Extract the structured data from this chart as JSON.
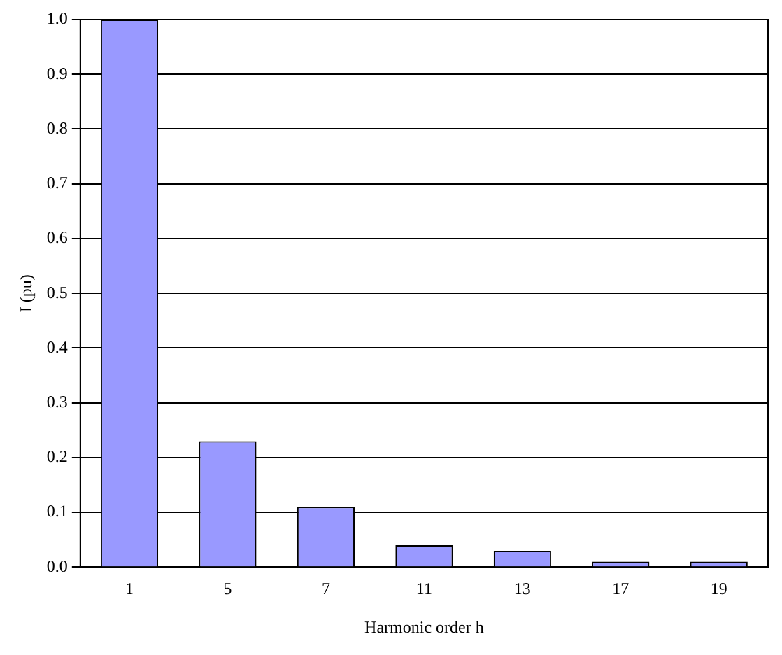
{
  "chart_data": {
    "type": "bar",
    "xlabel": "Harmonic order h",
    "ylabel": "I (pu)",
    "categories": [
      "1",
      "5",
      "7",
      "11",
      "13",
      "17",
      "19"
    ],
    "series": [
      {
        "color": "#9999ff",
        "values": [
          1.0,
          0.23,
          0.11,
          0.04,
          0.03,
          0.01,
          0.01
        ]
      }
    ],
    "ylim": [
      0,
      1.0
    ],
    "yticks": [
      {
        "value": 0,
        "label": "0.0"
      },
      0.1,
      0.2,
      0.3,
      0.4,
      0.5,
      0.6,
      0.7,
      0.8,
      0.9,
      {
        "value": 1,
        "label": "1.0"
      }
    ],
    "grid": "y",
    "legend": false
  }
}
